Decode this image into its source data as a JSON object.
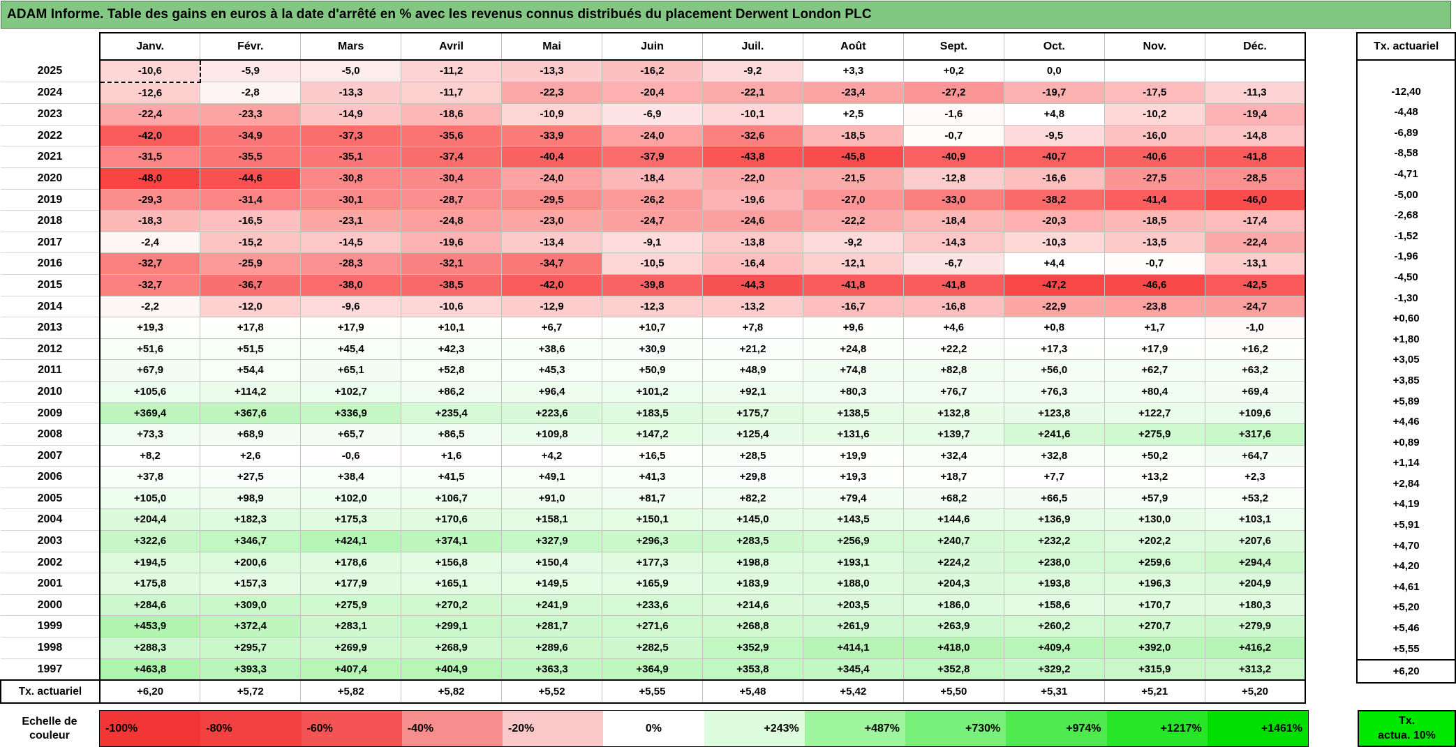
{
  "chart_data": {
    "type": "heatmap",
    "title": "ADAM Informe. Table des gains en euros à la date d'arrêté en % avec les revenus connus distribués du placement Derwent London PLC",
    "columns": [
      "Janv.",
      "Févr.",
      "Mars",
      "Avril",
      "Mai",
      "Juin",
      "Juil.",
      "Août",
      "Sept.",
      "Oct.",
      "Nov.",
      "Déc."
    ],
    "tx_column_header": "Tx. actuariel",
    "rows": [
      {
        "year": "2025",
        "values": [
          "-10,6",
          "-5,9",
          "-5,0",
          "-11,2",
          "-13,3",
          "-16,2",
          "-9,2",
          "+3,3",
          "+0,2",
          "0,0",
          "",
          ""
        ],
        "tx": ""
      },
      {
        "year": "2024",
        "values": [
          "-12,6",
          "-2,8",
          "-13,3",
          "-11,7",
          "-22,3",
          "-20,4",
          "-22,1",
          "-23,4",
          "-27,2",
          "-19,7",
          "-17,5",
          "-11,3"
        ],
        "tx": "-12,40"
      },
      {
        "year": "2023",
        "values": [
          "-22,4",
          "-23,3",
          "-14,9",
          "-18,6",
          "-10,9",
          "-6,9",
          "-10,1",
          "+2,5",
          "-1,6",
          "+4,8",
          "-10,2",
          "-19,4"
        ],
        "tx": "-4,48"
      },
      {
        "year": "2022",
        "values": [
          "-42,0",
          "-34,9",
          "-37,3",
          "-35,6",
          "-33,9",
          "-24,0",
          "-32,6",
          "-18,5",
          "-0,7",
          "-9,5",
          "-16,0",
          "-14,8"
        ],
        "tx": "-6,89"
      },
      {
        "year": "2021",
        "values": [
          "-31,5",
          "-35,5",
          "-35,1",
          "-37,4",
          "-40,4",
          "-37,9",
          "-43,8",
          "-45,8",
          "-40,9",
          "-40,7",
          "-40,6",
          "-41,8"
        ],
        "tx": "-8,58"
      },
      {
        "year": "2020",
        "values": [
          "-48,0",
          "-44,6",
          "-30,8",
          "-30,4",
          "-24,0",
          "-18,4",
          "-22,0",
          "-21,5",
          "-12,8",
          "-16,6",
          "-27,5",
          "-28,5"
        ],
        "tx": "-4,71"
      },
      {
        "year": "2019",
        "values": [
          "-29,3",
          "-31,4",
          "-30,1",
          "-28,7",
          "-29,5",
          "-26,2",
          "-19,6",
          "-27,0",
          "-33,0",
          "-38,2",
          "-41,4",
          "-46,0"
        ],
        "tx": "-5,00"
      },
      {
        "year": "2018",
        "values": [
          "-18,3",
          "-16,5",
          "-23,1",
          "-24,8",
          "-23,0",
          "-24,7",
          "-24,6",
          "-22,2",
          "-18,4",
          "-20,3",
          "-18,5",
          "-17,4"
        ],
        "tx": "-2,68"
      },
      {
        "year": "2017",
        "values": [
          "-2,4",
          "-15,2",
          "-14,5",
          "-19,6",
          "-13,4",
          "-9,1",
          "-13,8",
          "-9,2",
          "-14,3",
          "-10,3",
          "-13,5",
          "-22,4"
        ],
        "tx": "-1,52"
      },
      {
        "year": "2016",
        "values": [
          "-32,7",
          "-25,9",
          "-28,3",
          "-32,1",
          "-34,7",
          "-10,5",
          "-16,4",
          "-12,1",
          "-6,7",
          "+4,4",
          "-0,7",
          "-13,1"
        ],
        "tx": "-1,96"
      },
      {
        "year": "2015",
        "values": [
          "-32,7",
          "-36,7",
          "-38,0",
          "-38,5",
          "-42,0",
          "-39,8",
          "-44,3",
          "-41,8",
          "-41,8",
          "-47,2",
          "-46,6",
          "-42,5"
        ],
        "tx": "-4,50"
      },
      {
        "year": "2014",
        "values": [
          "-2,2",
          "-12,0",
          "-9,6",
          "-10,6",
          "-12,9",
          "-12,3",
          "-13,2",
          "-16,7",
          "-16,8",
          "-22,9",
          "-23,8",
          "-24,7"
        ],
        "tx": "-1,30"
      },
      {
        "year": "2013",
        "values": [
          "+19,3",
          "+17,8",
          "+17,9",
          "+10,1",
          "+6,7",
          "+10,7",
          "+7,8",
          "+9,6",
          "+4,6",
          "+0,8",
          "+1,7",
          "-1,0"
        ],
        "tx": "+0,60"
      },
      {
        "year": "2012",
        "values": [
          "+51,6",
          "+51,5",
          "+45,4",
          "+42,3",
          "+38,6",
          "+30,9",
          "+21,2",
          "+24,8",
          "+22,2",
          "+17,3",
          "+17,9",
          "+16,2"
        ],
        "tx": "+1,80"
      },
      {
        "year": "2011",
        "values": [
          "+67,9",
          "+54,4",
          "+65,1",
          "+52,8",
          "+45,3",
          "+50,9",
          "+48,9",
          "+74,8",
          "+82,8",
          "+56,0",
          "+62,7",
          "+63,2"
        ],
        "tx": "+3,05"
      },
      {
        "year": "2010",
        "values": [
          "+105,6",
          "+114,2",
          "+102,7",
          "+86,2",
          "+96,4",
          "+101,2",
          "+92,1",
          "+80,3",
          "+76,7",
          "+76,3",
          "+80,4",
          "+69,4"
        ],
        "tx": "+3,85"
      },
      {
        "year": "2009",
        "values": [
          "+369,4",
          "+367,6",
          "+336,9",
          "+235,4",
          "+223,6",
          "+183,5",
          "+175,7",
          "+138,5",
          "+132,8",
          "+123,8",
          "+122,7",
          "+109,6"
        ],
        "tx": "+5,89"
      },
      {
        "year": "2008",
        "values": [
          "+73,3",
          "+68,9",
          "+65,7",
          "+86,5",
          "+109,8",
          "+147,2",
          "+125,4",
          "+131,6",
          "+139,7",
          "+241,6",
          "+275,9",
          "+317,6"
        ],
        "tx": "+4,46"
      },
      {
        "year": "2007",
        "values": [
          "+8,2",
          "+2,6",
          "-0,6",
          "+1,6",
          "+4,2",
          "+16,5",
          "+28,5",
          "+19,9",
          "+32,4",
          "+32,8",
          "+50,2",
          "+64,7"
        ],
        "tx": "+0,89"
      },
      {
        "year": "2006",
        "values": [
          "+37,8",
          "+27,5",
          "+38,4",
          "+41,5",
          "+49,1",
          "+41,3",
          "+29,8",
          "+19,3",
          "+18,7",
          "+7,7",
          "+13,2",
          "+2,3"
        ],
        "tx": "+1,14"
      },
      {
        "year": "2005",
        "values": [
          "+105,0",
          "+98,9",
          "+102,0",
          "+106,7",
          "+91,0",
          "+81,7",
          "+82,2",
          "+79,4",
          "+68,2",
          "+66,5",
          "+57,9",
          "+53,2"
        ],
        "tx": "+2,84"
      },
      {
        "year": "2004",
        "values": [
          "+204,4",
          "+182,3",
          "+175,3",
          "+170,6",
          "+158,1",
          "+150,1",
          "+145,0",
          "+143,5",
          "+144,6",
          "+136,9",
          "+130,0",
          "+103,1"
        ],
        "tx": "+4,19"
      },
      {
        "year": "2003",
        "values": [
          "+322,6",
          "+346,7",
          "+424,1",
          "+374,1",
          "+327,9",
          "+296,3",
          "+283,5",
          "+256,9",
          "+240,7",
          "+232,2",
          "+202,2",
          "+207,6"
        ],
        "tx": "+5,91"
      },
      {
        "year": "2002",
        "values": [
          "+194,5",
          "+200,6",
          "+178,6",
          "+156,8",
          "+150,4",
          "+177,3",
          "+198,8",
          "+193,1",
          "+224,2",
          "+238,0",
          "+259,6",
          "+294,4"
        ],
        "tx": "+4,70"
      },
      {
        "year": "2001",
        "values": [
          "+175,8",
          "+157,3",
          "+177,9",
          "+165,1",
          "+149,5",
          "+165,9",
          "+183,9",
          "+188,0",
          "+204,3",
          "+193,8",
          "+196,3",
          "+204,9"
        ],
        "tx": "+4,20"
      },
      {
        "year": "2000",
        "values": [
          "+284,6",
          "+309,0",
          "+275,9",
          "+270,2",
          "+241,9",
          "+233,6",
          "+214,6",
          "+203,5",
          "+186,0",
          "+158,6",
          "+170,7",
          "+180,3"
        ],
        "tx": "+4,61"
      },
      {
        "year": "1999",
        "values": [
          "+453,9",
          "+372,4",
          "+283,1",
          "+299,1",
          "+281,7",
          "+271,6",
          "+268,8",
          "+261,9",
          "+263,9",
          "+260,2",
          "+270,7",
          "+279,9"
        ],
        "tx": "+5,20"
      },
      {
        "year": "1998",
        "values": [
          "+288,3",
          "+295,7",
          "+269,9",
          "+268,9",
          "+289,6",
          "+282,5",
          "+352,9",
          "+414,1",
          "+418,0",
          "+409,4",
          "+392,0",
          "+416,2"
        ],
        "tx": "+5,46"
      },
      {
        "year": "1997",
        "values": [
          "+463,8",
          "+393,3",
          "+407,4",
          "+404,9",
          "+363,3",
          "+364,9",
          "+353,8",
          "+345,4",
          "+352,8",
          "+329,2",
          "+315,9",
          "+313,2"
        ],
        "tx": "+5,55"
      }
    ],
    "footer_row": {
      "label": "Tx. actuariel",
      "values": [
        "+6,20",
        "+5,72",
        "+5,82",
        "+5,82",
        "+5,52",
        "+5,55",
        "+5,48",
        "+5,42",
        "+5,50",
        "+5,31",
        "+5,21",
        "+5,20"
      ],
      "tx": "+6,20"
    },
    "color_scale": {
      "negative_domain": 48,
      "positive_domain": 1461,
      "negative_color": "#f94444",
      "positive_color": "#00dd00",
      "zero_color": "#ffffff"
    },
    "legend": {
      "label": "Echelle de\ncouleur",
      "stops": [
        {
          "label": "-100%",
          "color": "#f23636",
          "align": "left"
        },
        {
          "label": "-80%",
          "color": "#f34040",
          "align": "left"
        },
        {
          "label": "-60%",
          "color": "#f55454",
          "align": "left"
        },
        {
          "label": "-40%",
          "color": "#f78e8e",
          "align": "left"
        },
        {
          "label": "-20%",
          "color": "#fac8c8",
          "align": "left"
        },
        {
          "label": "0%",
          "color": "#ffffff",
          "align": "center"
        },
        {
          "label": "+243%",
          "color": "#ddfbdd",
          "align": "right"
        },
        {
          "label": "+487%",
          "color": "#9ef59e",
          "align": "right"
        },
        {
          "label": "+730%",
          "color": "#79f079",
          "align": "right"
        },
        {
          "label": "+974%",
          "color": "#4fea4f",
          "align": "right"
        },
        {
          "label": "+1217%",
          "color": "#27e527",
          "align": "right"
        },
        {
          "label": "+1461%",
          "color": "#00df00",
          "align": "right"
        }
      ],
      "tx_box_label": "Tx.\nactua. 10%",
      "tx_box_color": "#00e700"
    }
  }
}
